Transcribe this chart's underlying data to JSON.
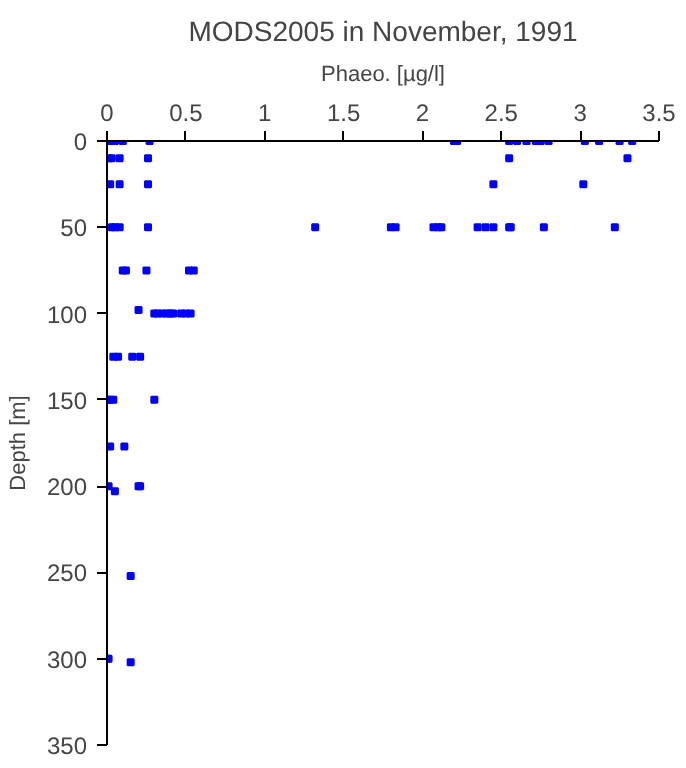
{
  "chart_data": {
    "type": "scatter",
    "title": "MODS2005 in November, 1991",
    "xlabel": "Phaeo. [µg/l]",
    "ylabel": "Depth [m]",
    "xlim": [
      0,
      3.5
    ],
    "xticks": [
      0,
      0.5,
      1,
      1.5,
      2,
      2.5,
      3,
      3.5
    ],
    "ylim": [
      350,
      0
    ],
    "yticks": [
      0,
      50,
      100,
      150,
      200,
      250,
      300,
      350
    ],
    "grid": false,
    "marker": "square",
    "series": [
      {
        "color": "#0000ff",
        "x": [
          0.02,
          0.05,
          0.1,
          0.27,
          2.2,
          2.22,
          2.55,
          2.6,
          2.66,
          2.72,
          2.75,
          2.8,
          3.03,
          3.12,
          3.25,
          3.33,
          0.01,
          0.03,
          0.08,
          0.26,
          2.55,
          3.3,
          0.02,
          0.08,
          0.26,
          2.45,
          3.02,
          0.03,
          0.05,
          0.08,
          0.26,
          1.32,
          1.8,
          1.83,
          2.07,
          2.1,
          2.12,
          2.35,
          2.4,
          2.45,
          2.55,
          2.56,
          2.77,
          3.22,
          0.1,
          0.12,
          0.25,
          0.52,
          0.55,
          0.2,
          0.3,
          0.32,
          0.35,
          0.38,
          0.4,
          0.42,
          0.47,
          0.5,
          0.53,
          0.04,
          0.07,
          0.16,
          0.21,
          0,
          0.02,
          0.04,
          0.3,
          0.02,
          0.11,
          0.01,
          0.2,
          0.21,
          0.05,
          0.15,
          0,
          0.01,
          0.15
        ],
        "values": [
          0,
          0,
          0,
          0,
          0,
          0,
          0,
          0,
          0,
          0,
          0,
          0,
          0,
          0,
          0,
          0,
          10,
          10,
          10,
          10,
          10,
          10,
          25,
          25,
          25,
          25,
          25,
          50,
          50,
          50,
          50,
          50,
          50,
          50,
          50,
          50,
          50,
          50,
          50,
          50,
          50,
          50,
          50,
          50,
          75,
          75,
          75,
          75,
          75,
          98,
          100,
          100,
          100,
          100,
          100,
          100,
          100,
          100,
          100,
          125,
          125,
          125,
          125,
          150,
          150,
          150,
          150,
          177,
          177,
          200,
          200,
          200,
          203,
          252,
          300,
          300,
          302
        ]
      }
    ]
  }
}
